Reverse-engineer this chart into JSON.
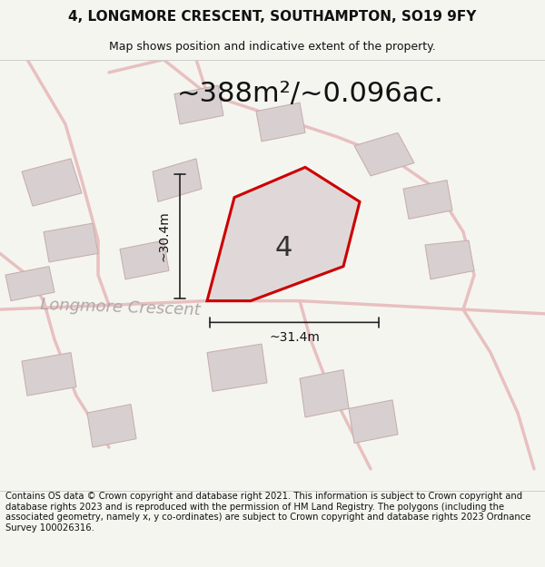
{
  "title_line1": "4, LONGMORE CRESCENT, SOUTHAMPTON, SO19 9FY",
  "title_line2": "Map shows position and indicative extent of the property.",
  "area_text": "~388m²/~0.096ac.",
  "label_number": "4",
  "dim_vertical": "~30.4m",
  "dim_horizontal": "~31.4m",
  "street_label": "Longmore Crescent",
  "footer_text": "Contains OS data © Crown copyright and database right 2021. This information is subject to Crown copyright and database rights 2023 and is reproduced with the permission of HM Land Registry. The polygons (including the associated geometry, namely x, y co-ordinates) are subject to Crown copyright and database rights 2023 Ordnance Survey 100026316.",
  "fig_bg": "#f5f5f0",
  "map_bg": "#ede8e8",
  "road_color": "#e8c0c0",
  "building_color": "#d8d0d0",
  "building_edge": "#c8b0b0",
  "plot_fill": "#e0d8d8",
  "plot_edge": "#cc0000",
  "dim_line_color": "#222222",
  "title_fontsize": 11,
  "subtitle_fontsize": 9,
  "area_fontsize": 22,
  "dim_fontsize": 10,
  "street_fontsize": 13,
  "number_fontsize": 22,
  "footer_fontsize": 7.2
}
